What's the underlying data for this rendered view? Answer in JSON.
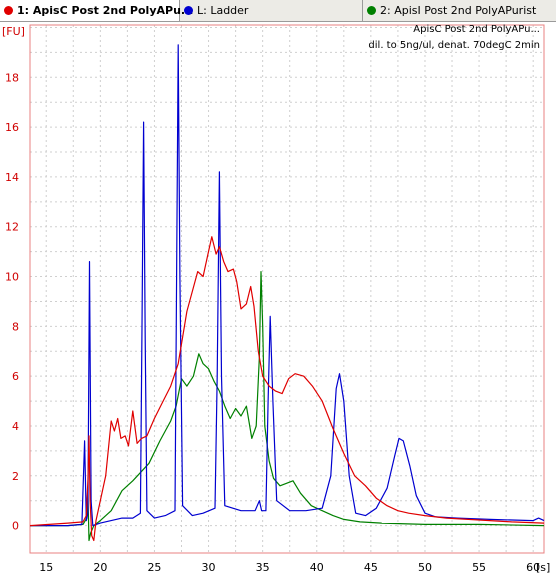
{
  "tabs": [
    {
      "label": "1: ApisC Post 2nd PolyAPu...",
      "color": "#e00000",
      "active": true
    },
    {
      "label": "L: Ladder",
      "color": "#0000d0",
      "active": false
    },
    {
      "label": "2: ApisI Post 2nd PolyAPurist",
      "color": "#008000",
      "active": false
    }
  ],
  "chart_data": {
    "type": "line",
    "ylabel": "[FU]",
    "xlabel": "[s]",
    "xlim": [
      13.5,
      61
    ],
    "ylim": [
      -1.1,
      20.1
    ],
    "x_ticks": [
      15,
      20,
      25,
      30,
      35,
      40,
      45,
      50,
      55,
      60
    ],
    "y_ticks": [
      0,
      2,
      4,
      6,
      8,
      10,
      12,
      14,
      16,
      18
    ],
    "grid": true,
    "annotation_lines": [
      "ApisC Post 2nd PolyAPu...",
      "dil. to 5ng/ul, denat. 70degC 2min"
    ],
    "annotation_position": "top-right",
    "series": [
      {
        "name": "1: ApisC Post 2nd PolyAPu...",
        "color": "#e00000",
        "points": [
          [
            13.5,
            0.0
          ],
          [
            17,
            0.1
          ],
          [
            18.4,
            0.15
          ],
          [
            18.7,
            0.4
          ],
          [
            18.85,
            1.8
          ],
          [
            18.95,
            3.6
          ],
          [
            19.05,
            1.0
          ],
          [
            19.2,
            -0.4
          ],
          [
            19.4,
            -0.6
          ],
          [
            19.6,
            0.2
          ],
          [
            20.0,
            1.0
          ],
          [
            20.5,
            2.0
          ],
          [
            21.0,
            4.2
          ],
          [
            21.3,
            3.8
          ],
          [
            21.6,
            4.3
          ],
          [
            21.9,
            3.5
          ],
          [
            22.3,
            3.6
          ],
          [
            22.6,
            3.2
          ],
          [
            23.0,
            4.6
          ],
          [
            23.4,
            3.3
          ],
          [
            23.8,
            3.5
          ],
          [
            24.3,
            3.6
          ],
          [
            25.0,
            4.3
          ],
          [
            25.8,
            5.0
          ],
          [
            26.5,
            5.6
          ],
          [
            27.2,
            6.5
          ],
          [
            28.0,
            8.6
          ],
          [
            29.0,
            10.2
          ],
          [
            29.5,
            10.0
          ],
          [
            30.0,
            11.0
          ],
          [
            30.3,
            11.6
          ],
          [
            30.7,
            10.9
          ],
          [
            31.0,
            11.2
          ],
          [
            31.4,
            10.6
          ],
          [
            31.8,
            10.2
          ],
          [
            32.3,
            10.3
          ],
          [
            32.6,
            9.8
          ],
          [
            33.0,
            8.7
          ],
          [
            33.5,
            8.9
          ],
          [
            33.9,
            9.6
          ],
          [
            34.2,
            8.8
          ],
          [
            34.6,
            7.0
          ],
          [
            35.0,
            6.0
          ],
          [
            35.6,
            5.6
          ],
          [
            36.2,
            5.4
          ],
          [
            36.8,
            5.3
          ],
          [
            37.4,
            5.9
          ],
          [
            38.0,
            6.1
          ],
          [
            38.8,
            6.0
          ],
          [
            39.6,
            5.6
          ],
          [
            40.5,
            5.0
          ],
          [
            41.5,
            3.9
          ],
          [
            42.5,
            2.9
          ],
          [
            43.5,
            2.0
          ],
          [
            44.5,
            1.6
          ],
          [
            45.5,
            1.1
          ],
          [
            46.5,
            0.8
          ],
          [
            47.5,
            0.6
          ],
          [
            48.5,
            0.5
          ],
          [
            50,
            0.4
          ],
          [
            52,
            0.3
          ],
          [
            54,
            0.25
          ],
          [
            56,
            0.2
          ],
          [
            58,
            0.15
          ],
          [
            61,
            0.1
          ]
        ]
      },
      {
        "name": "L: Ladder",
        "color": "#0000d0",
        "points": [
          [
            13.5,
            0.0
          ],
          [
            17,
            0.0
          ],
          [
            18.3,
            0.05
          ],
          [
            18.55,
            3.4
          ],
          [
            18.7,
            0.2
          ],
          [
            18.85,
            0.5
          ],
          [
            19.0,
            10.6
          ],
          [
            19.15,
            1.0
          ],
          [
            19.3,
            0.0
          ],
          [
            20,
            0.1
          ],
          [
            21,
            0.2
          ],
          [
            22,
            0.3
          ],
          [
            23,
            0.3
          ],
          [
            23.7,
            0.5
          ],
          [
            23.85,
            8.0
          ],
          [
            24.0,
            16.2
          ],
          [
            24.15,
            7.5
          ],
          [
            24.3,
            0.6
          ],
          [
            25,
            0.3
          ],
          [
            26,
            0.4
          ],
          [
            26.9,
            0.6
          ],
          [
            27.05,
            10.0
          ],
          [
            27.2,
            19.3
          ],
          [
            27.35,
            10.0
          ],
          [
            27.6,
            0.8
          ],
          [
            28.5,
            0.4
          ],
          [
            29.5,
            0.5
          ],
          [
            30.6,
            0.7
          ],
          [
            30.8,
            6.0
          ],
          [
            31.0,
            14.2
          ],
          [
            31.2,
            6.0
          ],
          [
            31.5,
            0.8
          ],
          [
            33,
            0.6
          ],
          [
            34.3,
            0.6
          ],
          [
            34.7,
            1.0
          ],
          [
            34.9,
            0.6
          ],
          [
            35.3,
            0.6
          ],
          [
            35.5,
            5.0
          ],
          [
            35.7,
            8.4
          ],
          [
            35.95,
            5.0
          ],
          [
            36.3,
            1.0
          ],
          [
            37.5,
            0.6
          ],
          [
            39,
            0.6
          ],
          [
            40.5,
            0.7
          ],
          [
            41.3,
            2.0
          ],
          [
            41.8,
            5.5
          ],
          [
            42.1,
            6.1
          ],
          [
            42.5,
            5.0
          ],
          [
            43.0,
            2.0
          ],
          [
            43.6,
            0.5
          ],
          [
            44.5,
            0.4
          ],
          [
            45.5,
            0.7
          ],
          [
            46.5,
            1.5
          ],
          [
            47.2,
            2.8
          ],
          [
            47.6,
            3.5
          ],
          [
            48.0,
            3.4
          ],
          [
            48.6,
            2.4
          ],
          [
            49.2,
            1.2
          ],
          [
            50,
            0.5
          ],
          [
            51,
            0.35
          ],
          [
            53,
            0.3
          ],
          [
            56,
            0.25
          ],
          [
            60,
            0.2
          ],
          [
            60.5,
            0.3
          ],
          [
            61,
            0.2
          ]
        ]
      },
      {
        "name": "2: ApisI Post 2nd PolyAPurist",
        "color": "#008000",
        "points": [
          [
            13.5,
            0.0
          ],
          [
            17,
            0.0
          ],
          [
            18.4,
            0.05
          ],
          [
            18.75,
            0.3
          ],
          [
            18.85,
            1.3
          ],
          [
            18.95,
            -0.6
          ],
          [
            19.1,
            -0.3
          ],
          [
            19.4,
            0.0
          ],
          [
            20,
            0.2
          ],
          [
            21,
            0.6
          ],
          [
            22,
            1.4
          ],
          [
            23,
            1.8
          ],
          [
            24.5,
            2.5
          ],
          [
            25.5,
            3.4
          ],
          [
            26.5,
            4.2
          ],
          [
            27.0,
            4.8
          ],
          [
            27.5,
            5.9
          ],
          [
            28,
            5.6
          ],
          [
            28.6,
            6.0
          ],
          [
            29.1,
            6.9
          ],
          [
            29.5,
            6.5
          ],
          [
            30.0,
            6.3
          ],
          [
            30.5,
            5.8
          ],
          [
            31,
            5.4
          ],
          [
            31.5,
            4.8
          ],
          [
            32.0,
            4.3
          ],
          [
            32.5,
            4.7
          ],
          [
            33,
            4.4
          ],
          [
            33.5,
            4.8
          ],
          [
            34,
            3.5
          ],
          [
            34.4,
            4.0
          ],
          [
            34.7,
            6.8
          ],
          [
            34.85,
            10.2
          ],
          [
            35.0,
            8.0
          ],
          [
            35.2,
            4.0
          ],
          [
            35.6,
            2.6
          ],
          [
            36,
            1.9
          ],
          [
            36.6,
            1.6
          ],
          [
            37.2,
            1.7
          ],
          [
            37.8,
            1.8
          ],
          [
            38.5,
            1.3
          ],
          [
            39.5,
            0.8
          ],
          [
            40.5,
            0.6
          ],
          [
            41.5,
            0.4
          ],
          [
            42.5,
            0.25
          ],
          [
            44,
            0.15
          ],
          [
            46,
            0.1
          ],
          [
            50,
            0.05
          ],
          [
            55,
            0.05
          ],
          [
            61,
            0.0
          ]
        ]
      }
    ]
  }
}
